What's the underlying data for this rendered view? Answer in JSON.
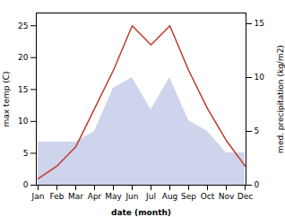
{
  "chart_data": {
    "type": "line",
    "xlabel": "date (month)",
    "ylabel": "max temp (C)",
    "y2label": "med. precipitation (kg/m2)",
    "categories": [
      "Jan",
      "Feb",
      "Mar",
      "Apr",
      "May",
      "Jun",
      "Jul",
      "Aug",
      "Sep",
      "Oct",
      "Nov",
      "Dec"
    ],
    "series": [
      {
        "type": "area",
        "axis": "y2",
        "color": "#c5cce8",
        "values": [
          4,
          4,
          4,
          5,
          9,
          10,
          7,
          10,
          6,
          5,
          3,
          3
        ]
      },
      {
        "type": "line",
        "color": "#c0392b",
        "values": [
          1,
          3,
          6,
          12,
          18,
          25,
          22,
          25,
          18,
          12,
          7,
          3
        ]
      }
    ],
    "ylim": [
      0,
      27
    ],
    "yticks": [
      0,
      5,
      10,
      15,
      20,
      25
    ],
    "y2lim": [
      0,
      16
    ],
    "y2ticks": [
      0,
      5,
      10,
      15
    ]
  }
}
